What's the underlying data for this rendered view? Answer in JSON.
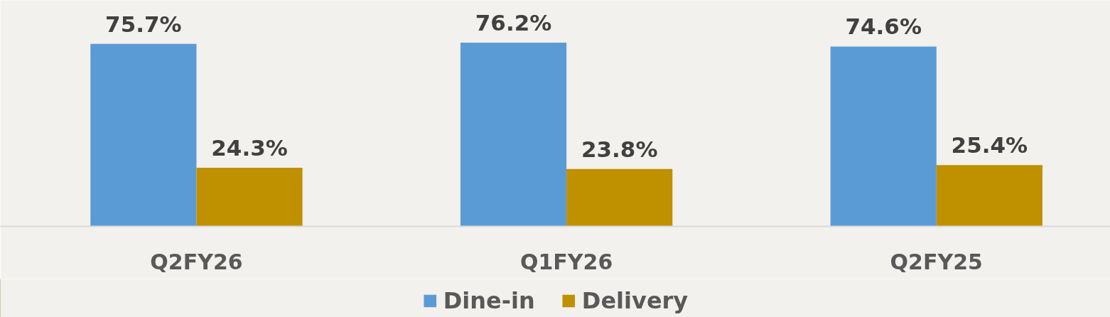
{
  "chart_data": {
    "type": "bar",
    "categories": [
      "Q2FY26",
      "Q1FY26",
      "Q2FY25"
    ],
    "series": [
      {
        "name": "Dine-in",
        "color": "#5b9bd5",
        "values": [
          75.7,
          76.2,
          74.6
        ],
        "value_labels": [
          "75.7%",
          "76.2%",
          "74.6%"
        ]
      },
      {
        "name": "Delivery",
        "color": "#bf9000",
        "values": [
          24.3,
          23.8,
          25.4
        ],
        "value_labels": [
          "24.3%",
          "23.8%",
          "25.4%"
        ]
      }
    ],
    "legend": "bottom",
    "tick_labels": "x"
  }
}
